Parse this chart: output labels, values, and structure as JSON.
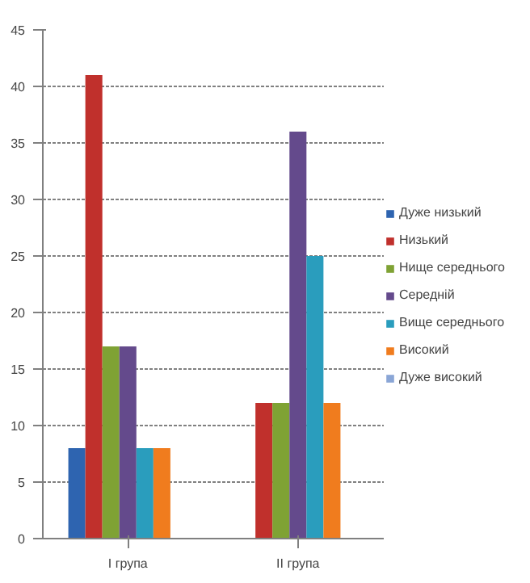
{
  "chart_data": {
    "type": "bar",
    "categories": [
      "I група",
      "II група"
    ],
    "series": [
      {
        "name": "Дуже низький",
        "color": "#2e64b0",
        "values": [
          8,
          0
        ]
      },
      {
        "name": "Низький",
        "color": "#c0302c",
        "values": [
          41,
          12
        ]
      },
      {
        "name": "Нище середнього",
        "color": "#7fa234",
        "values": [
          17,
          12
        ]
      },
      {
        "name": "Середній",
        "color": "#644a8c",
        "values": [
          17,
          36
        ]
      },
      {
        "name": "Вище середнього",
        "color": "#2a9dbd",
        "values": [
          8,
          25
        ]
      },
      {
        "name": "Високий",
        "color": "#f07c1e",
        "values": [
          8,
          12
        ]
      },
      {
        "name": "Дуже високий",
        "color": "#8aa6d6",
        "values": [
          0,
          0
        ]
      }
    ],
    "ylim": [
      0,
      45
    ],
    "yticks": [
      0,
      5,
      10,
      15,
      20,
      25,
      30,
      35,
      40,
      45
    ],
    "grid": "y",
    "legend": "right"
  }
}
